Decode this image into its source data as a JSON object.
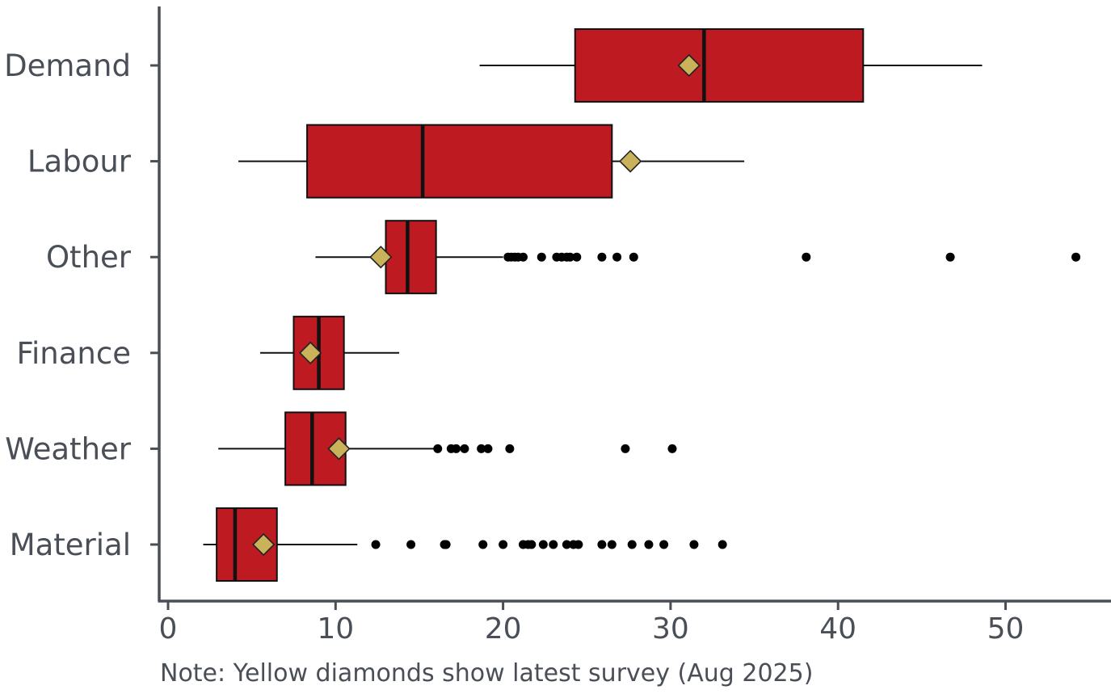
{
  "chart_data": {
    "type": "box",
    "orientation": "horizontal",
    "note": "Note: Yellow diamonds show latest survey (Aug 2025)",
    "xlim": [
      -0.5,
      56
    ],
    "x_ticks": [
      0,
      10,
      20,
      30,
      40,
      50
    ],
    "x_tick_labels": [
      "0",
      "10",
      "20",
      "30",
      "40",
      "50"
    ],
    "box_color": "#be1a22",
    "diamond_color": "#c9b25a",
    "axis_color": "#4a4f57",
    "categories": [
      "Demand",
      "Labour",
      "Other",
      "Finance",
      "Weather",
      "Material"
    ],
    "boxes": [
      {
        "category": "Demand",
        "whisker_low": 18.6,
        "q1": 24.3,
        "median": 32.0,
        "q3": 41.5,
        "whisker_high": 48.6,
        "latest": 31.1,
        "outliers": []
      },
      {
        "category": "Labour",
        "whisker_low": 4.2,
        "q1": 8.3,
        "median": 15.2,
        "q3": 26.5,
        "whisker_high": 34.4,
        "latest": 27.6,
        "outliers": []
      },
      {
        "category": "Other",
        "whisker_low": 8.8,
        "q1": 13.0,
        "median": 14.3,
        "q3": 16.0,
        "whisker_high": 20.0,
        "latest": 12.7,
        "outliers": [
          20.3,
          20.5,
          20.7,
          20.9,
          21.2,
          22.3,
          23.2,
          23.5,
          23.8,
          24.0,
          24.4,
          25.9,
          26.8,
          27.8,
          38.1,
          46.7,
          54.2
        ]
      },
      {
        "category": "Finance",
        "whisker_low": 5.5,
        "q1": 7.5,
        "median": 9.0,
        "q3": 10.5,
        "whisker_high": 13.8,
        "latest": 8.5,
        "outliers": []
      },
      {
        "category": "Weather",
        "whisker_low": 3.0,
        "q1": 7.0,
        "median": 8.6,
        "q3": 10.6,
        "whisker_high": 16.0,
        "latest": 10.2,
        "outliers": [
          16.1,
          16.9,
          17.2,
          17.7,
          18.7,
          19.1,
          20.4,
          27.3,
          30.1
        ]
      },
      {
        "category": "Material",
        "whisker_low": 2.1,
        "q1": 2.9,
        "median": 4.0,
        "q3": 6.5,
        "whisker_high": 11.3,
        "latest": 5.7,
        "outliers": [
          12.4,
          14.5,
          16.5,
          16.6,
          18.8,
          20.0,
          21.2,
          21.5,
          21.7,
          22.4,
          23.0,
          23.8,
          24.2,
          24.5,
          25.9,
          26.5,
          27.7,
          28.7,
          29.6,
          31.4,
          33.1
        ]
      }
    ]
  }
}
